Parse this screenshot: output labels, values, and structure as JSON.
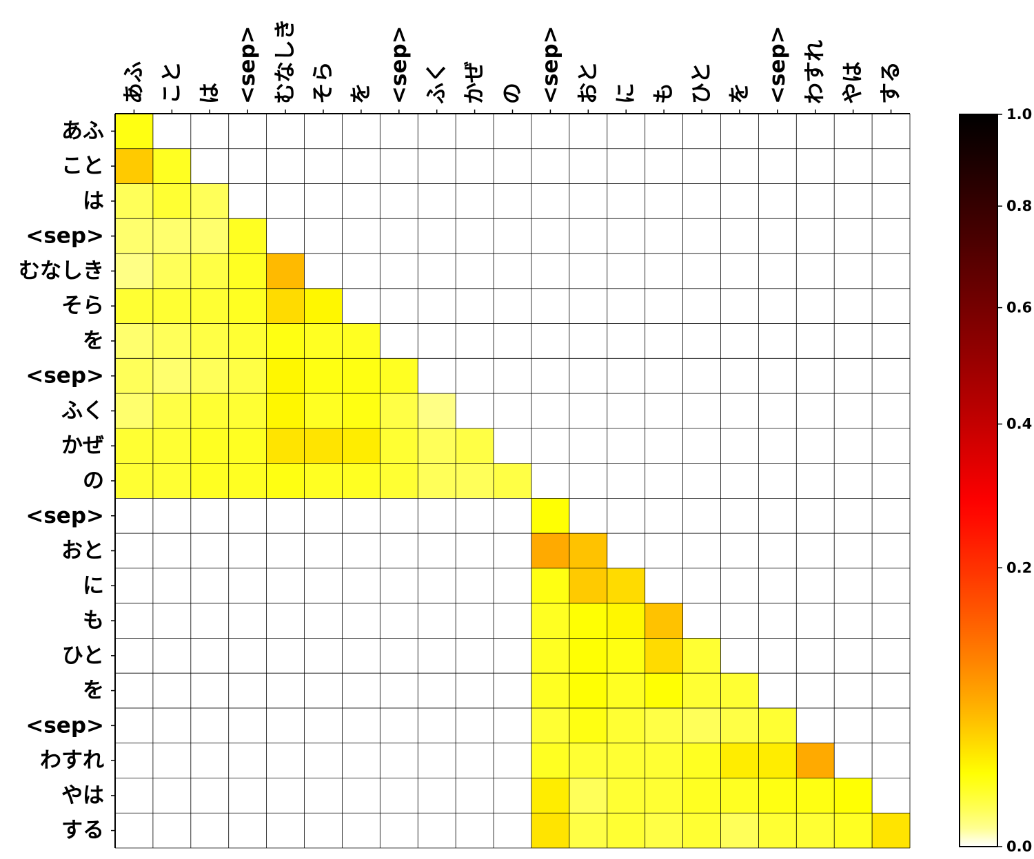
{
  "chart_data": {
    "type": "heatmap",
    "title": "",
    "xlabel": "",
    "ylabel": "",
    "colormap": "hot_r",
    "x_axis_position": "top",
    "x_labels": [
      "あふ",
      "こと",
      "は",
      "<sep>",
      "むなしき",
      "そら",
      "を",
      "<sep>",
      "ふく",
      "かぜ",
      "の",
      "<sep>",
      "おと",
      "に",
      "も",
      "ひと",
      "を",
      "<sep>",
      "わすれ",
      "やは",
      "する"
    ],
    "y_labels": [
      "あふ",
      "こと",
      "は",
      "<sep>",
      "むなしき",
      "そら",
      "を",
      "<sep>",
      "ふく",
      "かぜ",
      "の",
      "<sep>",
      "おと",
      "に",
      "も",
      "ひと",
      "を",
      "<sep>",
      "わすれ",
      "やは",
      "する"
    ],
    "values": [
      [
        0.09,
        null,
        null,
        null,
        null,
        null,
        null,
        null,
        null,
        null,
        null,
        null,
        null,
        null,
        null,
        null,
        null,
        null,
        null,
        null,
        null
      ],
      [
        0.16,
        0.08,
        null,
        null,
        null,
        null,
        null,
        null,
        null,
        null,
        null,
        null,
        null,
        null,
        null,
        null,
        null,
        null,
        null,
        null,
        null
      ],
      [
        0.05,
        0.07,
        0.05,
        null,
        null,
        null,
        null,
        null,
        null,
        null,
        null,
        null,
        null,
        null,
        null,
        null,
        null,
        null,
        null,
        null,
        null
      ],
      [
        0.04,
        0.04,
        0.04,
        0.08,
        null,
        null,
        null,
        null,
        null,
        null,
        null,
        null,
        null,
        null,
        null,
        null,
        null,
        null,
        null,
        null,
        null
      ],
      [
        0.03,
        0.05,
        0.06,
        0.08,
        0.18,
        null,
        null,
        null,
        null,
        null,
        null,
        null,
        null,
        null,
        null,
        null,
        null,
        null,
        null,
        null,
        null
      ],
      [
        0.07,
        0.07,
        0.07,
        0.08,
        0.14,
        0.11,
        null,
        null,
        null,
        null,
        null,
        null,
        null,
        null,
        null,
        null,
        null,
        null,
        null,
        null,
        null
      ],
      [
        0.04,
        0.05,
        0.06,
        0.07,
        0.09,
        0.08,
        0.08,
        null,
        null,
        null,
        null,
        null,
        null,
        null,
        null,
        null,
        null,
        null,
        null,
        null,
        null
      ],
      [
        0.05,
        0.04,
        0.05,
        0.06,
        0.11,
        0.09,
        0.09,
        0.08,
        null,
        null,
        null,
        null,
        null,
        null,
        null,
        null,
        null,
        null,
        null,
        null,
        null
      ],
      [
        0.04,
        0.06,
        0.07,
        0.07,
        0.11,
        0.08,
        0.09,
        0.06,
        0.03,
        null,
        null,
        null,
        null,
        null,
        null,
        null,
        null,
        null,
        null,
        null,
        null
      ],
      [
        0.07,
        0.07,
        0.08,
        0.08,
        0.13,
        0.13,
        0.12,
        0.07,
        0.05,
        0.06,
        null,
        null,
        null,
        null,
        null,
        null,
        null,
        null,
        null,
        null,
        null
      ],
      [
        0.07,
        0.07,
        0.08,
        0.08,
        0.09,
        0.08,
        0.08,
        0.07,
        0.05,
        0.05,
        0.06,
        null,
        null,
        null,
        null,
        null,
        null,
        null,
        null,
        null,
        null
      ],
      [
        null,
        null,
        null,
        null,
        null,
        null,
        null,
        null,
        null,
        null,
        null,
        0.1,
        null,
        null,
        null,
        null,
        null,
        null,
        null,
        null,
        null
      ],
      [
        null,
        null,
        null,
        null,
        null,
        null,
        null,
        null,
        null,
        null,
        null,
        0.2,
        0.17,
        null,
        null,
        null,
        null,
        null,
        null,
        null,
        null
      ],
      [
        null,
        null,
        null,
        null,
        null,
        null,
        null,
        null,
        null,
        null,
        null,
        0.09,
        0.16,
        0.14,
        null,
        null,
        null,
        null,
        null,
        null,
        null
      ],
      [
        null,
        null,
        null,
        null,
        null,
        null,
        null,
        null,
        null,
        null,
        null,
        0.08,
        0.1,
        0.11,
        0.17,
        null,
        null,
        null,
        null,
        null,
        null
      ],
      [
        null,
        null,
        null,
        null,
        null,
        null,
        null,
        null,
        null,
        null,
        null,
        0.08,
        0.1,
        0.09,
        0.14,
        0.07,
        null,
        null,
        null,
        null,
        null
      ],
      [
        null,
        null,
        null,
        null,
        null,
        null,
        null,
        null,
        null,
        null,
        null,
        0.08,
        0.1,
        0.08,
        0.1,
        0.07,
        0.07,
        null,
        null,
        null,
        null
      ],
      [
        null,
        null,
        null,
        null,
        null,
        null,
        null,
        null,
        null,
        null,
        null,
        0.07,
        0.09,
        0.07,
        0.06,
        0.05,
        0.06,
        0.07,
        null,
        null,
        null
      ],
      [
        null,
        null,
        null,
        null,
        null,
        null,
        null,
        null,
        null,
        null,
        null,
        0.08,
        0.07,
        0.07,
        0.07,
        0.08,
        0.12,
        0.12,
        0.2,
        null,
        null
      ],
      [
        null,
        null,
        null,
        null,
        null,
        null,
        null,
        null,
        null,
        null,
        null,
        0.12,
        0.05,
        0.07,
        0.07,
        0.08,
        0.08,
        0.09,
        0.09,
        0.1,
        null
      ],
      [
        null,
        null,
        null,
        null,
        null,
        null,
        null,
        null,
        null,
        null,
        null,
        0.13,
        0.06,
        0.07,
        0.06,
        0.07,
        0.05,
        0.07,
        0.07,
        0.08,
        0.13
      ]
    ],
    "colorbar": {
      "range": [
        0.0,
        1.0
      ],
      "ticks": [
        "0.0",
        "0.2",
        "0.4",
        "0.6",
        "0.8",
        "1.0"
      ],
      "tick_values": [
        0.0,
        0.2,
        0.4,
        0.6,
        0.8,
        1.0
      ],
      "power": 0.6,
      "position": "right"
    },
    "grid": true
  }
}
